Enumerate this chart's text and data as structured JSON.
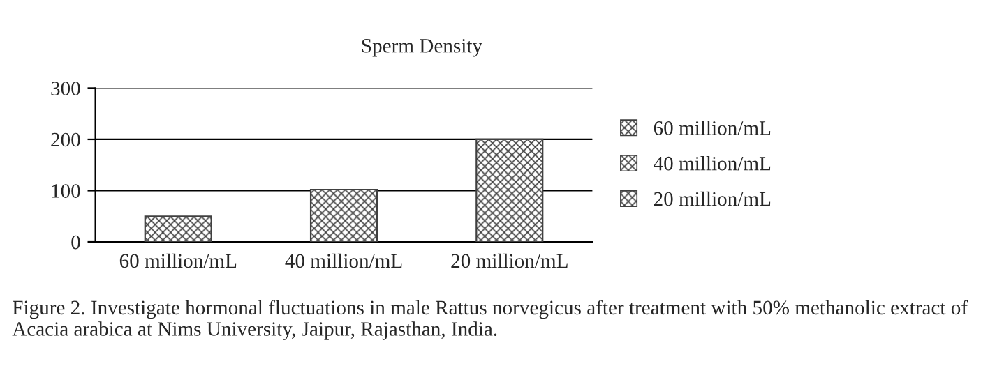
{
  "chart_data": {
    "type": "bar",
    "title": "Sperm Density",
    "categories": [
      "60 million/mL",
      "40 million/mL",
      "20 million/mL"
    ],
    "series": [
      {
        "name": "60 million/mL",
        "color": "#404040",
        "values": [
          50,
          null,
          null
        ]
      },
      {
        "name": "40 million/mL",
        "color": "#404040",
        "values": [
          null,
          102,
          null
        ]
      },
      {
        "name": "20 million/mL",
        "color": "#404040",
        "values": [
          null,
          null,
          200
        ]
      }
    ],
    "stacked": true,
    "ylim": [
      0,
      300
    ],
    "yticks": [
      0,
      100,
      200,
      300
    ],
    "grid": "y",
    "legend": "right",
    "annotations": [
      "Figure 2. Investigate hormonal fluctuations in male Rattus norvegicus after treatment with 50% methanolic extract of Acacia arabica at Nims University, Jaipur, Rajasthan, India."
    ]
  }
}
